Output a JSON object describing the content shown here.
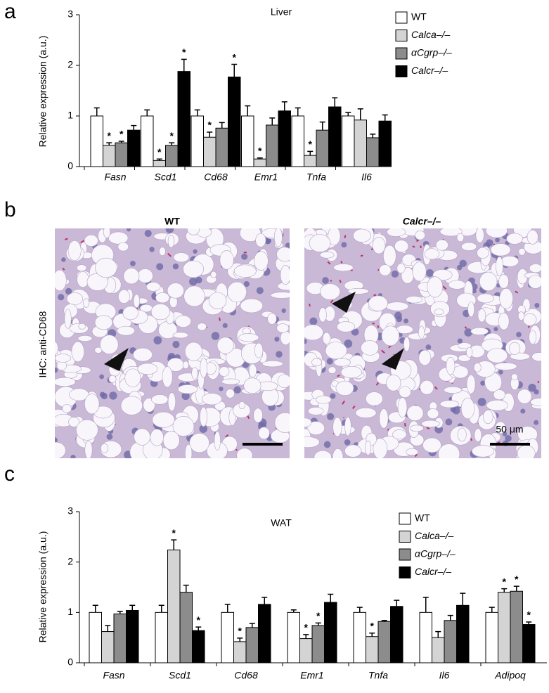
{
  "chart_data": [
    {
      "type": "bar",
      "panel": "a",
      "title": "Liver",
      "ylabel": "Relative expression (a.u.)",
      "categories": [
        "Fasn",
        "Scd1",
        "Cd68",
        "Emr1",
        "Tnfa",
        "Il6"
      ],
      "ylim": [
        0,
        3
      ],
      "yticks": [
        0,
        1,
        2,
        3
      ],
      "grid": false,
      "legend": "upper right",
      "series": [
        {
          "name": "WT",
          "color": "#ffffff",
          "values": [
            1.0,
            1.0,
            1.0,
            1.0,
            1.0,
            1.0
          ],
          "errors": [
            0.16,
            0.12,
            0.12,
            0.2,
            0.16,
            0.07
          ],
          "significance": [
            null,
            null,
            null,
            null,
            null,
            null
          ]
        },
        {
          "name": "Calca–/–",
          "color": "#d4d4d4",
          "values": [
            0.42,
            0.12,
            0.58,
            0.15,
            0.22,
            0.92
          ],
          "errors": [
            0.05,
            0.03,
            0.1,
            0.02,
            0.08,
            0.22
          ],
          "significance": [
            "*",
            "*",
            "*",
            "*",
            "*",
            null
          ]
        },
        {
          "name": "αCgrp–/–",
          "color": "#8c8c8c",
          "values": [
            0.47,
            0.42,
            0.76,
            0.82,
            0.72,
            0.57
          ],
          "errors": [
            0.03,
            0.05,
            0.11,
            0.14,
            0.16,
            0.07
          ],
          "significance": [
            "*",
            "*",
            null,
            null,
            null,
            null
          ]
        },
        {
          "name": "Calcr–/–",
          "color": "#000000",
          "values": [
            0.72,
            1.88,
            1.77,
            1.1,
            1.18,
            0.9
          ],
          "errors": [
            0.09,
            0.24,
            0.25,
            0.18,
            0.18,
            0.12
          ],
          "significance": [
            null,
            "*",
            "*",
            null,
            null,
            null
          ]
        }
      ]
    },
    {
      "type": "bar",
      "panel": "c",
      "title": "WAT",
      "ylabel": "Relative expression (a.u.)",
      "categories": [
        "Fasn",
        "Scd1",
        "Cd68",
        "Emr1",
        "Tnfa",
        "Il6",
        "Adipoq"
      ],
      "ylim": [
        0,
        3
      ],
      "yticks": [
        0,
        1,
        2,
        3
      ],
      "grid": false,
      "legend": "upper right",
      "series": [
        {
          "name": "WT",
          "color": "#ffffff",
          "values": [
            1.0,
            1.0,
            1.0,
            1.0,
            1.0,
            1.0,
            1.0
          ],
          "errors": [
            0.14,
            0.14,
            0.16,
            0.05,
            0.1,
            0.3,
            0.1
          ],
          "significance": [
            null,
            null,
            null,
            null,
            null,
            null,
            null
          ]
        },
        {
          "name": "Calca–/–",
          "color": "#d4d4d4",
          "values": [
            0.62,
            2.24,
            0.42,
            0.48,
            0.52,
            0.5,
            1.4
          ],
          "errors": [
            0.12,
            0.2,
            0.07,
            0.08,
            0.07,
            0.12,
            0.07
          ],
          "significance": [
            null,
            "*",
            "*",
            "*",
            "*",
            null,
            "*"
          ]
        },
        {
          "name": "αCgrp–/–",
          "color": "#8c8c8c",
          "values": [
            0.97,
            1.4,
            0.7,
            0.74,
            0.82,
            0.84,
            1.42
          ],
          "errors": [
            0.05,
            0.14,
            0.08,
            0.05,
            0.02,
            0.1,
            0.1
          ],
          "significance": [
            null,
            null,
            null,
            "*",
            null,
            null,
            "*"
          ]
        },
        {
          "name": "Calcr–/–",
          "color": "#000000",
          "values": [
            1.04,
            0.64,
            1.16,
            1.2,
            1.12,
            1.14,
            0.76
          ],
          "errors": [
            0.1,
            0.07,
            0.14,
            0.16,
            0.12,
            0.24,
            0.05
          ],
          "significance": [
            null,
            "*",
            null,
            null,
            null,
            null,
            "*"
          ]
        }
      ]
    }
  ],
  "panel_b": {
    "panel": "b",
    "stain_label": "IHC: anti-CD68",
    "left_title": "WT",
    "right_title": "Calcr–/–",
    "scale_bar": "50 μm"
  }
}
